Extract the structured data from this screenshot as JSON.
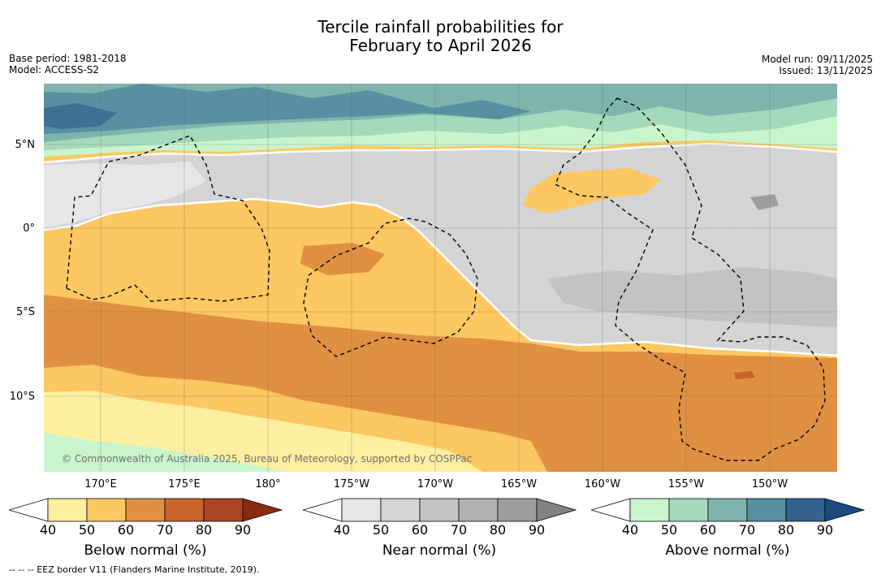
{
  "title": {
    "line1": "Tercile rainfall probabilities for",
    "line2": "February to April 2026"
  },
  "meta_left": {
    "base_period": "Base period: 1981-2018",
    "model": "Model: ACCESS-S2"
  },
  "meta_right": {
    "model_run": "Model run: 09/11/2025",
    "issued": "Issued: 13/11/2025"
  },
  "lat_labels": [
    "5°N",
    "0°",
    "5°S",
    "10°S"
  ],
  "lon_labels": [
    "170°E",
    "175°E",
    "180°",
    "175°W",
    "170°W",
    "165°W",
    "160°W",
    "155°W",
    "150°W"
  ],
  "copyright": "© Commonwealth of Australia 2025, Bureau of Meteorology, supported by COSPPac",
  "colorbars": [
    {
      "label": "Below normal (%)",
      "ticks": [
        "40",
        "50",
        "60",
        "70",
        "80",
        "90"
      ],
      "colors": [
        "#ffffff",
        "#feeea0",
        "#fdc762",
        "#e09041",
        "#c8632e",
        "#a94523",
        "#8a2a10"
      ]
    },
    {
      "label": "Near normal (%)",
      "ticks": [
        "40",
        "50",
        "60",
        "70",
        "80",
        "90"
      ],
      "colors": [
        "#ffffff",
        "#e6e6e6",
        "#d4d4d4",
        "#c3c3c3",
        "#b1b1b1",
        "#9e9e9e",
        "#828282"
      ]
    },
    {
      "label": "Above normal (%)",
      "ticks": [
        "40",
        "50",
        "60",
        "70",
        "80",
        "90"
      ],
      "colors": [
        "#ffffff",
        "#c9f5cc",
        "#a4d9bb",
        "#7fb4ad",
        "#5690a2",
        "#33628f",
        "#1d4b7e"
      ]
    }
  ],
  "footnote": "--  --  -- EEZ border V11 (Flanders Marine Institute, 2019)."
}
